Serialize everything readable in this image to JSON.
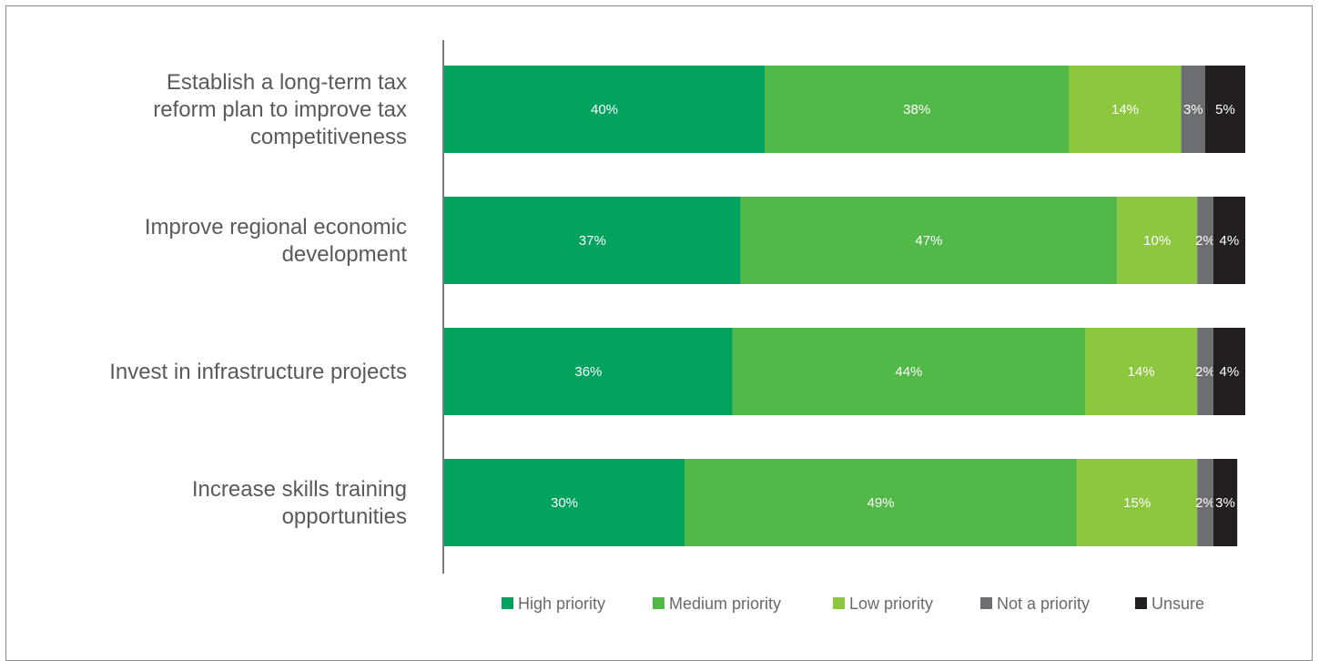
{
  "chart_data": {
    "type": "bar",
    "orientation": "horizontal",
    "stacked": true,
    "categories": [
      [
        "Establish a long-term tax",
        "reform plan to improve tax",
        "competitiveness"
      ],
      [
        "Improve regional economic",
        "development"
      ],
      [
        "Invest in infrastructure projects"
      ],
      [
        "Increase skills training",
        "opportunities"
      ]
    ],
    "series": [
      {
        "name": "High priority",
        "color": "#00a25e",
        "values": [
          40,
          37,
          36,
          30
        ]
      },
      {
        "name": "Medium priority",
        "color": "#52b848",
        "values": [
          38,
          47,
          44,
          49
        ]
      },
      {
        "name": "Low priority",
        "color": "#8dc63f",
        "values": [
          14,
          10,
          14,
          15
        ]
      },
      {
        "name": "Not a priority",
        "color": "#6d6e71",
        "values": [
          3,
          2,
          2,
          2
        ]
      },
      {
        "name": "Unsure",
        "color": "#231f20",
        "values": [
          5,
          4,
          4,
          3
        ]
      }
    ],
    "value_suffix": "%",
    "xlim": [
      0,
      100
    ],
    "grid": false,
    "legend_position": "bottom"
  }
}
